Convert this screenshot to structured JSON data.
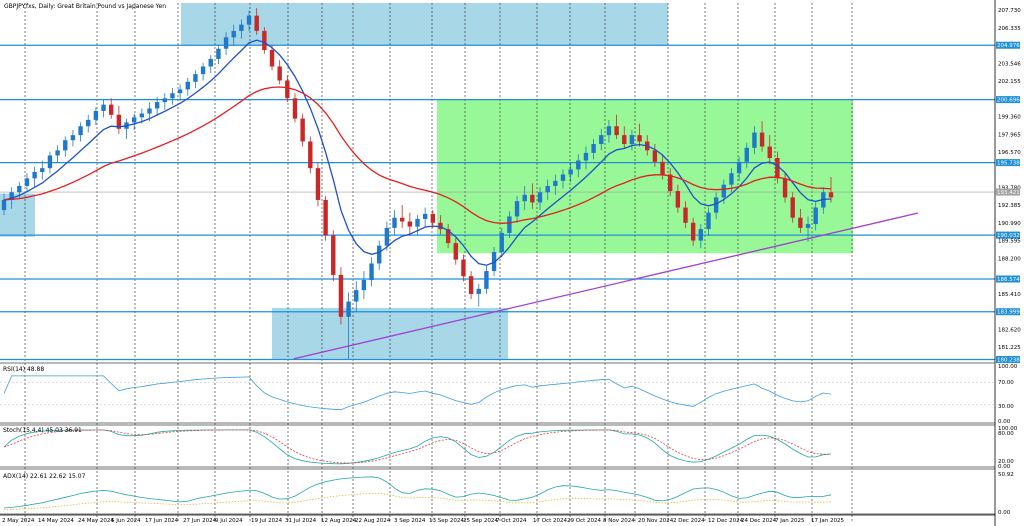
{
  "header": {
    "symbol_label": "GBPJPY.fxs, Daily:  Great Britain Pound vs Japanese Yen"
  },
  "indicators": {
    "rsi_label": "RSI(14) 48.88",
    "rsi_levels": [
      "100.00",
      "70.00",
      "30.00",
      "0.00"
    ],
    "stoch_label": "Stoch(15,4,4) 45.03 36.91",
    "stoch_levels": [
      "100.00",
      "80.00",
      "20.00",
      "0.00"
    ],
    "adx_label": "ADX(14) 22.61 22.62 15.07",
    "adx_levels": [
      "50.92",
      "0.00"
    ]
  },
  "chart_data": {
    "type": "candlestick",
    "title": "GBPJPY.fxs, Daily:  Great Britain Pound vs Japanese Yen",
    "x_tick_labels": [
      "2 May 2024",
      "14 May 2024",
      "24 May 2024",
      "5 Jun 2024",
      "17 Jun 2024",
      "27 Jun 2024",
      "9 Jul 2024",
      "19 Jul 2024",
      "31 Jul 2024",
      "12 Aug 2024",
      "22 Aug 2024",
      "3 Sep 2024",
      "13 Sep 2024",
      "25 Sep 2024",
      "7 Oct 2024",
      "17 Oct 2024",
      "29 Oct 2024",
      "8 Nov 2024",
      "20 Nov 2024",
      "2 Dec 2024",
      "12 Dec 2024",
      "24 Dec 2024",
      "7 Jan 2025",
      "17 Jan 2025"
    ],
    "y_tick_labels": [
      "207.730",
      "206.335",
      "203.546",
      "202.155",
      "199.360",
      "197.965",
      "196.570",
      "193.780",
      "192.385",
      "190.990",
      "189.595",
      "188.200",
      "185.410",
      "182.620",
      "181.225"
    ],
    "ylim": [
      180.2,
      208.3
    ],
    "horizontal_levels": [
      {
        "label": "204.976",
        "value": 204.976,
        "color": "#1e8fd8"
      },
      {
        "label": "200.696",
        "value": 200.696,
        "color": "#1e8fd8"
      },
      {
        "label": "195.738",
        "value": 195.738,
        "color": "#1e8fd8"
      },
      {
        "label": "193.421",
        "value": 193.421,
        "color": "#a0a0a0"
      },
      {
        "label": "190.032",
        "value": 190.032,
        "color": "#1e8fd8"
      },
      {
        "label": "186.574",
        "value": 186.574,
        "color": "#1e8fd8"
      },
      {
        "label": "183.999",
        "value": 183.999,
        "color": "#1e8fd8"
      },
      {
        "label": "180.238",
        "value": 180.238,
        "color": "#1e8fd8"
      }
    ],
    "zones": [
      {
        "from_label": "27 Jun 2024",
        "to_label": "12 Dec 2024",
        "y": [
          204.976,
          208.3
        ],
        "color": "#a8d8e8"
      },
      {
        "from_label": "2 May 2024",
        "to_label": "14 May 2024",
        "y": [
          189.9,
          193.3
        ],
        "color": "#a8d8e8"
      },
      {
        "from_label": "31 Jul 2024",
        "to_label": "3 Sep 2024",
        "y": [
          180.2,
          184.3
        ],
        "color": "#a8d8e8"
      },
      {
        "from_label": "13 Sep 2024",
        "to_label": "17 Jan 2025",
        "y": [
          188.6,
          200.7
        ],
        "color": "#98f898"
      }
    ],
    "trendline": {
      "from": [
        "31 Jul 2024",
        180.3
      ],
      "to": [
        "17 Jan 2025",
        191.6
      ],
      "color": "#a040d0"
    },
    "candles": [
      [
        192.0,
        193.3,
        191.6,
        192.8
      ],
      [
        192.8,
        193.8,
        192.1,
        193.4
      ],
      [
        193.4,
        194.2,
        192.9,
        193.9
      ],
      [
        193.9,
        194.9,
        193.4,
        194.5
      ],
      [
        194.5,
        195.4,
        193.8,
        195.0
      ],
      [
        195.0,
        195.9,
        194.4,
        195.3
      ],
      [
        195.3,
        196.6,
        194.9,
        196.3
      ],
      [
        196.3,
        197.1,
        195.7,
        196.7
      ],
      [
        196.7,
        197.8,
        196.2,
        197.5
      ],
      [
        197.5,
        198.3,
        197.0,
        197.9
      ],
      [
        197.9,
        198.9,
        197.4,
        198.6
      ],
      [
        198.6,
        199.5,
        198.1,
        199.1
      ],
      [
        199.1,
        200.1,
        198.7,
        199.8
      ],
      [
        199.8,
        200.7,
        199.3,
        200.3
      ],
      [
        200.3,
        200.8,
        199.2,
        199.5
      ],
      [
        199.5,
        200.2,
        198.0,
        198.4
      ],
      [
        198.4,
        199.2,
        197.6,
        198.9
      ],
      [
        198.9,
        199.6,
        198.3,
        199.3
      ],
      [
        199.3,
        200.0,
        198.8,
        199.6
      ],
      [
        199.6,
        200.5,
        199.0,
        200.0
      ],
      [
        200.0,
        200.9,
        199.5,
        200.5
      ],
      [
        200.5,
        201.2,
        199.9,
        200.8
      ],
      [
        200.8,
        201.6,
        200.3,
        201.2
      ],
      [
        201.2,
        201.9,
        200.6,
        201.5
      ],
      [
        201.5,
        202.4,
        201.0,
        202.1
      ],
      [
        202.1,
        203.0,
        201.6,
        202.7
      ],
      [
        202.7,
        203.6,
        202.2,
        203.3
      ],
      [
        203.3,
        204.2,
        202.8,
        203.9
      ],
      [
        203.9,
        205.0,
        203.5,
        204.7
      ],
      [
        204.7,
        206.0,
        204.2,
        205.6
      ],
      [
        205.6,
        206.6,
        205.0,
        206.1
      ],
      [
        206.1,
        207.0,
        205.5,
        206.6
      ],
      [
        206.6,
        207.7,
        206.1,
        207.3
      ],
      [
        207.3,
        207.9,
        205.8,
        206.1
      ],
      [
        206.1,
        206.4,
        204.3,
        204.6
      ],
      [
        204.6,
        205.0,
        203.0,
        203.3
      ],
      [
        203.3,
        203.8,
        201.9,
        202.2
      ],
      [
        202.2,
        202.6,
        200.5,
        200.8
      ],
      [
        200.8,
        201.2,
        198.9,
        199.2
      ],
      [
        199.2,
        199.6,
        197.0,
        197.4
      ],
      [
        197.4,
        197.8,
        194.9,
        195.3
      ],
      [
        195.3,
        195.7,
        192.3,
        192.8
      ],
      [
        192.8,
        193.1,
        189.6,
        190.0
      ],
      [
        190.0,
        190.4,
        186.4,
        186.9
      ],
      [
        186.9,
        187.5,
        183.0,
        183.6
      ],
      [
        183.6,
        185.5,
        180.3,
        184.8
      ],
      [
        184.8,
        186.4,
        184.0,
        185.7
      ],
      [
        185.7,
        187.2,
        185.0,
        186.5
      ],
      [
        186.5,
        188.3,
        186.0,
        187.8
      ],
      [
        187.8,
        189.6,
        187.3,
        189.2
      ],
      [
        189.2,
        191.1,
        188.8,
        190.6
      ],
      [
        190.6,
        192.0,
        190.0,
        191.4
      ],
      [
        191.4,
        192.4,
        190.6,
        191.1
      ],
      [
        191.1,
        191.8,
        190.0,
        190.7
      ],
      [
        190.7,
        191.6,
        190.0,
        191.3
      ],
      [
        191.3,
        192.2,
        190.7,
        191.7
      ],
      [
        191.7,
        192.0,
        190.6,
        191.0
      ],
      [
        191.0,
        191.6,
        190.1,
        190.5
      ],
      [
        190.5,
        190.9,
        189.0,
        189.4
      ],
      [
        189.4,
        189.8,
        187.7,
        188.1
      ],
      [
        188.1,
        188.5,
        186.4,
        186.8
      ],
      [
        186.8,
        187.2,
        185.0,
        185.4
      ],
      [
        185.4,
        186.2,
        184.4,
        185.8
      ],
      [
        185.8,
        187.6,
        185.4,
        187.2
      ],
      [
        187.2,
        189.1,
        186.8,
        188.7
      ],
      [
        188.7,
        190.6,
        188.3,
        190.2
      ],
      [
        190.2,
        191.9,
        189.8,
        191.5
      ],
      [
        191.5,
        193.1,
        191.0,
        192.7
      ],
      [
        192.7,
        193.9,
        192.0,
        193.2
      ],
      [
        193.2,
        194.1,
        192.1,
        192.6
      ],
      [
        192.6,
        193.8,
        192.0,
        193.4
      ],
      [
        193.4,
        194.4,
        192.8,
        193.9
      ],
      [
        193.9,
        194.8,
        193.2,
        194.3
      ],
      [
        194.3,
        195.2,
        193.7,
        194.8
      ],
      [
        194.8,
        195.7,
        194.2,
        195.2
      ],
      [
        195.2,
        196.4,
        194.6,
        195.9
      ],
      [
        195.9,
        197.0,
        195.2,
        196.5
      ],
      [
        196.5,
        197.6,
        196.0,
        197.2
      ],
      [
        197.2,
        198.4,
        196.7,
        197.9
      ],
      [
        197.9,
        199.1,
        197.3,
        198.6
      ],
      [
        198.6,
        199.5,
        197.6,
        197.9
      ],
      [
        197.9,
        198.6,
        196.8,
        197.2
      ],
      [
        197.2,
        198.3,
        196.7,
        197.9
      ],
      [
        197.9,
        198.8,
        197.0,
        197.4
      ],
      [
        197.4,
        197.9,
        196.3,
        196.7
      ],
      [
        196.7,
        197.2,
        195.4,
        195.8
      ],
      [
        195.8,
        196.3,
        194.4,
        194.8
      ],
      [
        194.8,
        195.3,
        193.1,
        193.5
      ],
      [
        193.5,
        194.0,
        191.8,
        192.2
      ],
      [
        192.2,
        192.7,
        190.6,
        191.0
      ],
      [
        191.0,
        191.4,
        189.2,
        189.6
      ],
      [
        189.6,
        190.9,
        189.0,
        190.5
      ],
      [
        190.5,
        192.2,
        190.0,
        191.8
      ],
      [
        191.8,
        193.4,
        191.3,
        193.0
      ],
      [
        193.0,
        194.4,
        192.5,
        194.0
      ],
      [
        194.0,
        195.3,
        193.4,
        194.9
      ],
      [
        194.9,
        196.2,
        194.3,
        195.8
      ],
      [
        195.8,
        197.3,
        195.3,
        196.9
      ],
      [
        196.9,
        198.6,
        196.4,
        198.1
      ],
      [
        198.1,
        199.0,
        196.6,
        197.0
      ],
      [
        197.0,
        197.9,
        195.6,
        196.1
      ],
      [
        196.1,
        196.6,
        194.1,
        194.5
      ],
      [
        194.5,
        194.9,
        192.6,
        193.0
      ],
      [
        193.0,
        193.4,
        191.0,
        191.4
      ],
      [
        191.4,
        192.1,
        190.2,
        190.6
      ],
      [
        190.6,
        191.5,
        189.5,
        190.9
      ],
      [
        190.9,
        192.6,
        190.4,
        192.2
      ],
      [
        192.2,
        193.8,
        191.7,
        193.4
      ],
      [
        193.4,
        194.6,
        192.6,
        193.0
      ]
    ]
  },
  "colors": {
    "bull": "#1f78c8",
    "bear": "#c82828",
    "ma_fast": "#1e50c8",
    "ma_slow": "#e02020",
    "level": "#1e8fd8",
    "trend": "#a040d0",
    "zone_blue": "#a8d8e8",
    "zone_green": "#98f898",
    "osc": "#3c9cdc"
  }
}
